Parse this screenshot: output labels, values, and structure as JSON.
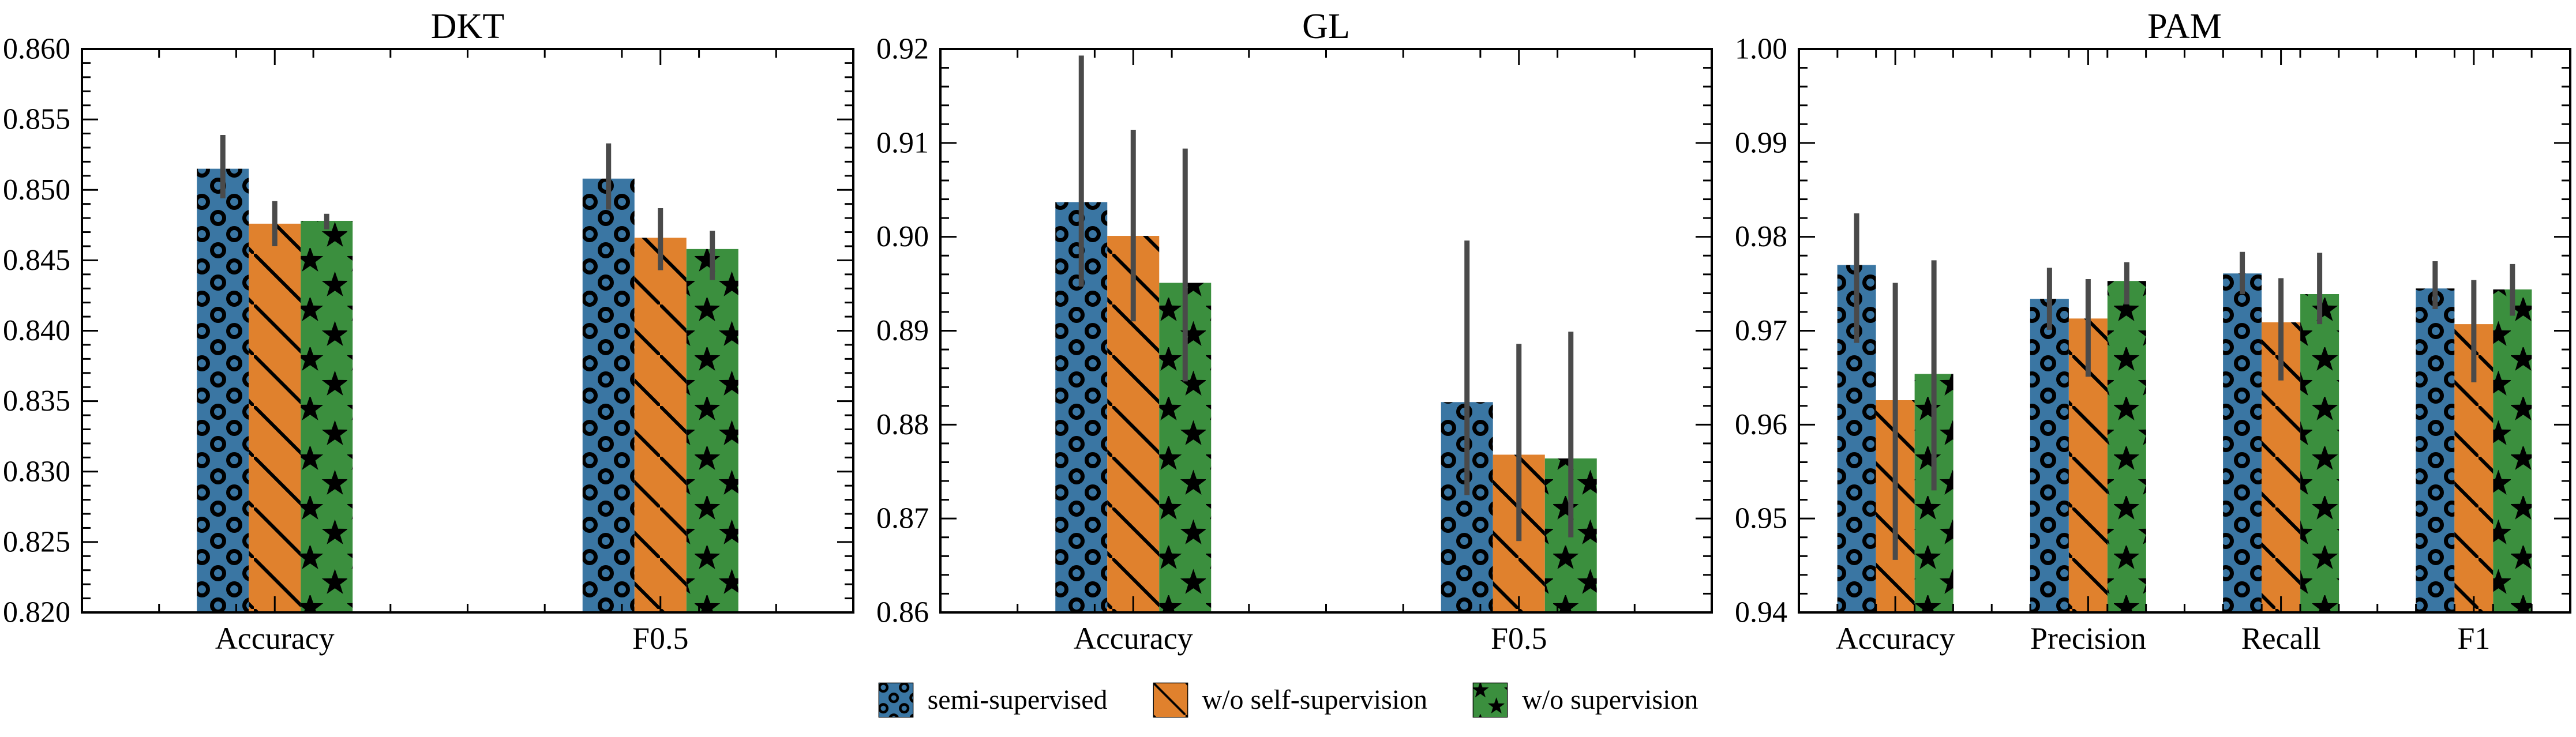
{
  "page": {
    "background": "#ffffff"
  },
  "colors": {
    "series_blue": "#3A76A3",
    "series_orange": "#E0812D",
    "series_green": "#3B8F3E",
    "error_bar": "#4A4A4A",
    "axis": "#000000",
    "text": "#000000"
  },
  "legend": {
    "position": "bottom center",
    "items": [
      {
        "label": "semi-supervised",
        "color_key": "series_blue",
        "hatch": "circles",
        "swatch_icon": "circle-hatch-swatch"
      },
      {
        "label": "w/o self-supervision",
        "color_key": "series_orange",
        "hatch": "backslash",
        "swatch_icon": "backslash-hatch-swatch"
      },
      {
        "label": "w/o supervision",
        "color_key": "series_green",
        "hatch": "stars",
        "swatch_icon": "star-hatch-swatch"
      }
    ]
  },
  "chart_data": [
    {
      "type": "bar",
      "title": "DKT",
      "categories": [
        "Accuracy",
        "F0.5"
      ],
      "xlabel": "",
      "ylabel": "",
      "ylim": [
        0.82,
        0.86
      ],
      "ytick_step": 0.005,
      "ytick_minor_step": 0.001,
      "ytick_labels": [
        "0.820",
        "0.825",
        "0.830",
        "0.835",
        "0.840",
        "0.845",
        "0.850",
        "0.855",
        "0.860"
      ],
      "grid": false,
      "error_bars": true,
      "series": [
        {
          "name": "semi-supervised",
          "hatch": "circles",
          "color_key": "series_blue",
          "values": [
            0.8515,
            0.8508
          ],
          "err_lo": [
            0.8494,
            0.8486
          ],
          "err_hi": [
            0.8539,
            0.8533
          ]
        },
        {
          "name": "w/o self-supervision",
          "hatch": "backslash",
          "color_key": "series_orange",
          "values": [
            0.8476,
            0.8466
          ],
          "err_lo": [
            0.846,
            0.8443
          ],
          "err_hi": [
            0.8492,
            0.8487
          ]
        },
        {
          "name": "w/o supervision",
          "hatch": "stars",
          "color_key": "series_green",
          "values": [
            0.8478,
            0.8458
          ],
          "err_lo": [
            0.8472,
            0.8436
          ],
          "err_hi": [
            0.8483,
            0.8471
          ]
        }
      ]
    },
    {
      "type": "bar",
      "title": "GL",
      "categories": [
        "Accuracy",
        "F0.5"
      ],
      "xlabel": "",
      "ylabel": "",
      "ylim": [
        0.86,
        0.92
      ],
      "ytick_step": 0.01,
      "ytick_minor_step": 0.002,
      "ytick_labels": [
        "0.86",
        "0.87",
        "0.88",
        "0.89",
        "0.90",
        "0.91",
        "0.92"
      ],
      "grid": false,
      "error_bars": true,
      "series": [
        {
          "name": "semi-supervised",
          "hatch": "circles",
          "color_key": "series_blue",
          "values": [
            0.9037,
            0.8824
          ],
          "err_lo": [
            0.8947,
            0.8725
          ],
          "err_hi": [
            0.9193,
            0.8996
          ]
        },
        {
          "name": "w/o self-supervision",
          "hatch": "backslash",
          "color_key": "series_orange",
          "values": [
            0.9001,
            0.8768
          ],
          "err_lo": [
            0.891,
            0.8676
          ],
          "err_hi": [
            0.9114,
            0.8886
          ]
        },
        {
          "name": "w/o supervision",
          "hatch": "stars",
          "color_key": "series_green",
          "values": [
            0.8951,
            0.8764
          ],
          "err_lo": [
            0.8846,
            0.868
          ],
          "err_hi": [
            0.9094,
            0.8899
          ]
        }
      ]
    },
    {
      "type": "bar",
      "title": "PAM",
      "categories": [
        "Accuracy",
        "Precision",
        "Recall",
        "F1"
      ],
      "xlabel": "",
      "ylabel": "",
      "ylim": [
        0.94,
        1.0
      ],
      "ytick_step": 0.01,
      "ytick_minor_step": 0.002,
      "ytick_labels": [
        "0.94",
        "0.95",
        "0.96",
        "0.97",
        "0.98",
        "0.99",
        "1.00"
      ],
      "grid": false,
      "error_bars": true,
      "series": [
        {
          "name": "semi-supervised",
          "hatch": "circles",
          "color_key": "series_blue",
          "values": [
            0.977,
            0.9734,
            0.9761,
            0.9745
          ],
          "err_lo": [
            0.9687,
            0.9701,
            0.9739,
            0.9723
          ],
          "err_hi": [
            0.9825,
            0.9767,
            0.9784,
            0.9774
          ]
        },
        {
          "name": "w/o self-supervision",
          "hatch": "backslash",
          "color_key": "series_orange",
          "values": [
            0.9626,
            0.9713,
            0.9709,
            0.9707
          ],
          "err_lo": [
            0.9456,
            0.9651,
            0.9647,
            0.9645
          ],
          "err_hi": [
            0.9751,
            0.9755,
            0.9756,
            0.9754
          ]
        },
        {
          "name": "w/o supervision",
          "hatch": "stars",
          "color_key": "series_green",
          "values": [
            0.9654,
            0.9753,
            0.9739,
            0.9744
          ],
          "err_lo": [
            0.953,
            0.9728,
            0.9707,
            0.9716
          ],
          "err_hi": [
            0.9775,
            0.9773,
            0.9783,
            0.9771
          ]
        }
      ]
    }
  ]
}
